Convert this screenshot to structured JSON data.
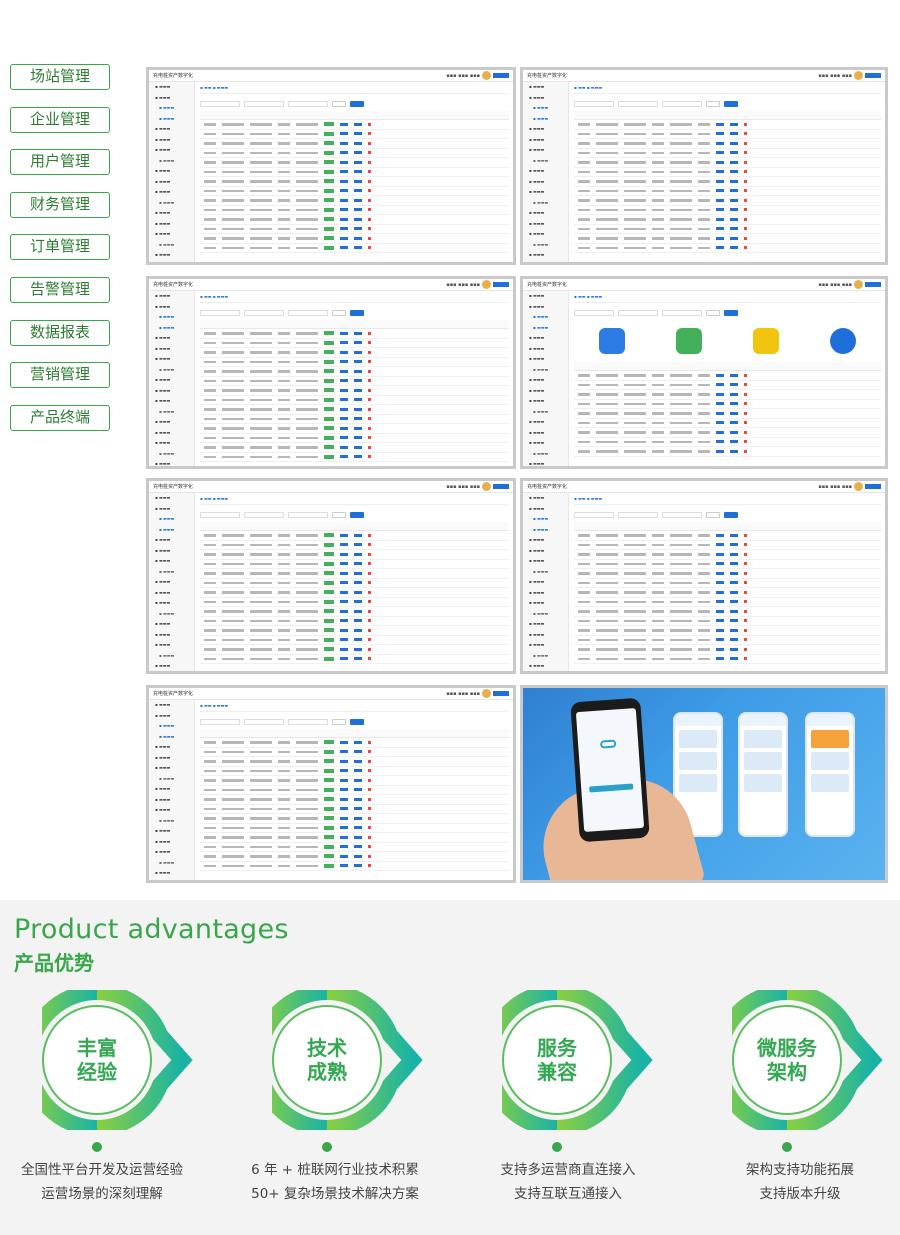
{
  "nav": {
    "items": [
      "场站管理",
      "企业管理",
      "用户管理",
      "财务管理",
      "订单管理",
      "告警管理",
      "数据报表",
      "营销管理",
      "产品终端"
    ]
  },
  "screens": {
    "app_title": "充电桩资产数字化"
  },
  "advantages": {
    "title_en": "Product advantages",
    "title_cn": "产品优势",
    "items": [
      {
        "line1": "丰富",
        "line2": "经验",
        "desc1": "全国性平台开发及运营经验",
        "desc2": "运营场景的深刻理解"
      },
      {
        "line1": "技术",
        "line2": "成熟",
        "desc1": "6 年 + 桩联网行业技术积累",
        "desc2": "50+ 复杂场景技术解决方案"
      },
      {
        "line1": "服务",
        "line2": "兼容",
        "desc1": "支持多运营商直连接入",
        "desc2": "支持互联互通接入"
      },
      {
        "line1": "微服务",
        "line2": "架构",
        "desc1": "架构支持功能拓展",
        "desc2": "支持版本升级"
      }
    ]
  },
  "colors": {
    "accent_green": "#3aa64a",
    "primary_blue": "#1e6fd9",
    "teal": "#19b3a6"
  }
}
